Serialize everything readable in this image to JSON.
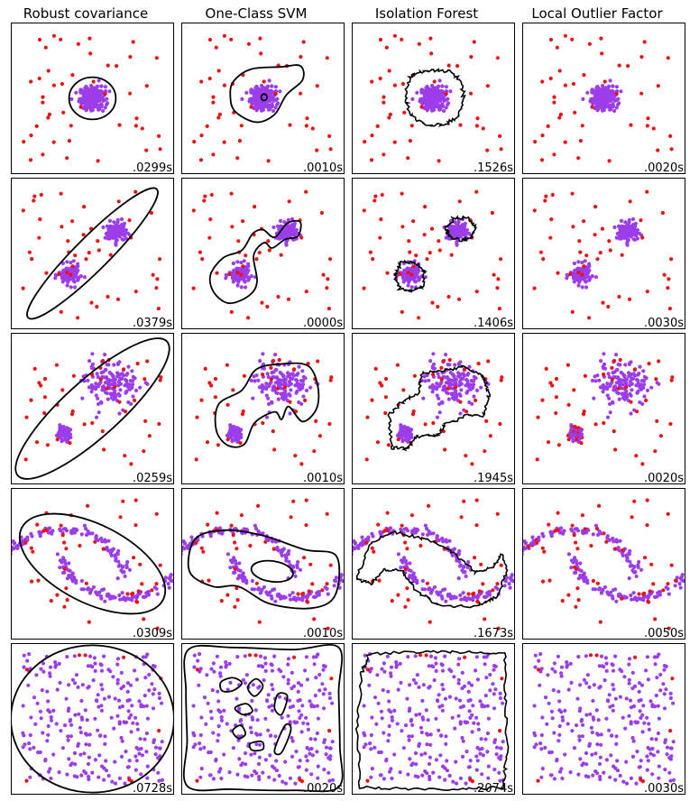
{
  "colors": {
    "inlier": "#9c3dea",
    "outlier": "#ee1111",
    "contour": "#000000"
  },
  "chart_data": {
    "type": "scatter",
    "layout": "grid",
    "columns": [
      "Robust covariance",
      "One-Class SVM",
      "Isolation Forest",
      "Local Outlier Factor"
    ],
    "rows": 5,
    "axis_range": [
      -7,
      7
    ],
    "ticks": "none",
    "datasets": [
      "single blob",
      "two blobs",
      "two blobs (unequal spread)",
      "two moons",
      "uniform noise"
    ],
    "timings": [
      [
        ".0299s",
        ".0010s",
        ".1526s",
        ".0020s"
      ],
      [
        ".0379s",
        ".0000s",
        ".1406s",
        ".0030s"
      ],
      [
        ".0259s",
        ".0010s",
        ".1945s",
        ".0020s"
      ],
      [
        ".0309s",
        ".0010s",
        ".1673s",
        ".0050s"
      ],
      [
        ".0728s",
        ".0020s",
        ".2074s",
        ".0030s"
      ]
    ]
  }
}
